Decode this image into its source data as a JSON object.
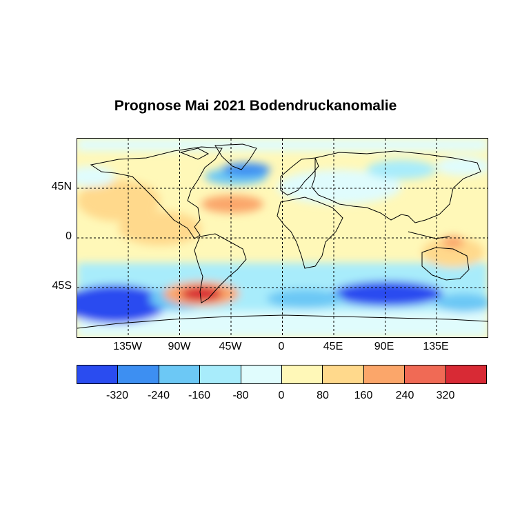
{
  "title": "Prognose Mai 2021 Bodendruckanomalie",
  "y_ticks": [
    {
      "label": "45N",
      "lat": 45
    },
    {
      "label": "0",
      "lat": 0
    },
    {
      "label": "45S",
      "lat": -45
    }
  ],
  "x_ticks": [
    {
      "label": "135W",
      "lon": -135
    },
    {
      "label": "90W",
      "lon": -90
    },
    {
      "label": "45W",
      "lon": -45
    },
    {
      "label": "0",
      "lon": 0
    },
    {
      "label": "45E",
      "lon": 45
    },
    {
      "label": "90E",
      "lon": 90
    },
    {
      "label": "135E",
      "lon": 135
    }
  ],
  "colorbar": {
    "colors": [
      "#2a4cf0",
      "#3d8ff2",
      "#6cc8f5",
      "#a8ecfb",
      "#e0fcfd",
      "#fff8b8",
      "#ffd98c",
      "#fba66a",
      "#f06a55",
      "#d82a35"
    ],
    "labels": [
      "-320",
      "-240",
      "-160",
      "-80",
      "0",
      "80",
      "160",
      "240",
      "320"
    ]
  },
  "anomaly_regions": [
    {
      "name": "southern-ocean-pacific-low",
      "lon": -160,
      "lat": -58,
      "level": -320
    },
    {
      "name": "southern-ocean-indian-low",
      "lon": 80,
      "lat": -47,
      "level": -320
    },
    {
      "name": "south-america-high",
      "lon": -75,
      "lat": -50,
      "level": 320
    },
    {
      "name": "north-atlantic-high",
      "lon": -35,
      "lat": 33,
      "level": 160
    },
    {
      "name": "north-atlantic-low",
      "lon": -45,
      "lat": 55,
      "level": -160
    },
    {
      "name": "australia-high",
      "lon": 145,
      "lat": -10,
      "level": 160
    },
    {
      "name": "antarctic-low",
      "lon": 0,
      "lat": -75,
      "level": -160
    }
  ]
}
